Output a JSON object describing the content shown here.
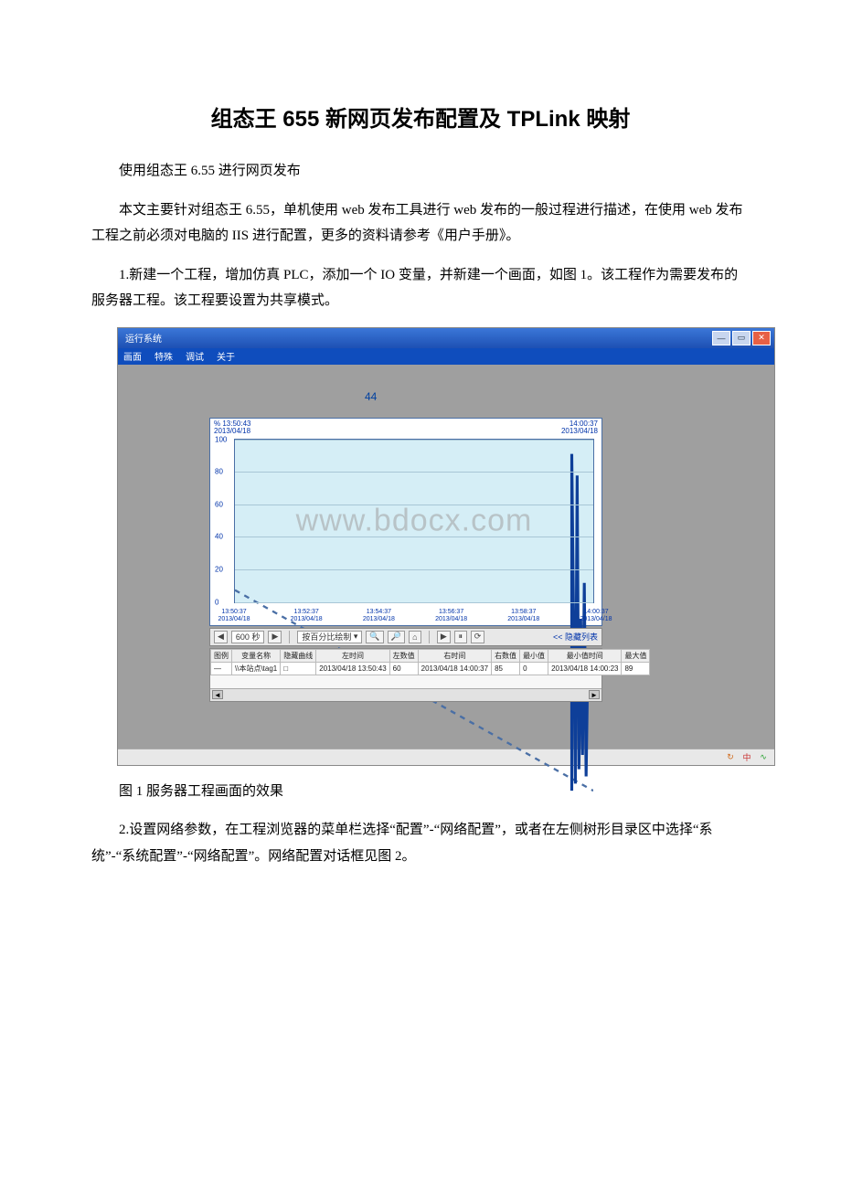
{
  "doc": {
    "title": "组态王 655 新网页发布配置及 TPLink 映射",
    "intro": "使用组态王 6.55 进行网页发布",
    "para1": "本文主要针对组态王 6.55，单机使用 web 发布工具进行 web 发布的一般过程进行描述，在使用 web 发布工程之前必须对电脑的 IIS 进行配置，更多的资料请参考《用户手册》。",
    "para2": "1.新建一个工程，增加仿真 PLC，添加一个 IO 变量，并新建一个画面，如图 1。该工程作为需要发布的服务器工程。该工程要设置为共享模式。",
    "caption1": "图 1 服务器工程画面的效果",
    "para3": "2.设置网络参数，在工程浏览器的菜单栏选择“配置”-“网络配置”，或者在左侧树形目录区中选择“系统”-“系统配置”-“网络配置”。网络配置对话框见图 2。"
  },
  "app": {
    "window_title": "运行系统",
    "menus": [
      "画面",
      "特殊",
      "调试",
      "关于"
    ],
    "big_value": "44",
    "titlebar_color": "#1e50b3",
    "client_bg": "#9f9f9f",
    "watermark": "www.bdocx.com"
  },
  "chart": {
    "type": "line",
    "bg_color": "#d5eef6",
    "grid_color": "#a8c6d6",
    "border_color": "#4a6fa5",
    "line_color_dotted": "#4a6fa5",
    "line_color_spike": "#0e3f99",
    "left_label_top": "% 13:50:43",
    "left_label_bottom": "2013/04/18",
    "right_label_top": "14:00:37",
    "right_label_bottom": "2013/04/18",
    "y_ticks": [
      0,
      20,
      40,
      60,
      80,
      100
    ],
    "ylim": [
      0,
      100
    ],
    "x_ticks": [
      {
        "t": "13:50:37",
        "d": "2013/04/18"
      },
      {
        "t": "13:52:37",
        "d": "2013/04/18"
      },
      {
        "t": "13:54:37",
        "d": "2013/04/18"
      },
      {
        "t": "13:56:37",
        "d": "2013/04/18"
      },
      {
        "t": "13:58:37",
        "d": "2013/04/18"
      },
      {
        "t": "14:00:37",
        "d": "2013/04/18"
      }
    ],
    "dotted_series": [
      [
        0,
        58
      ],
      [
        100,
        2
      ]
    ],
    "spike_series": [
      [
        94,
        2
      ],
      [
        94,
        96
      ],
      [
        95,
        4
      ],
      [
        95.5,
        90
      ],
      [
        96,
        8
      ],
      [
        96.5,
        50
      ],
      [
        97,
        12
      ],
      [
        97.5,
        60
      ],
      [
        98,
        6
      ],
      [
        98.5,
        40
      ]
    ]
  },
  "toolbar": {
    "nav_left": "◀",
    "span_value": "600 秒",
    "nav_right": "▶",
    "mode_label": "按百分比绘制",
    "hide_list": "<< 隐藏列表"
  },
  "table": {
    "columns": [
      "图例",
      "变量名称",
      "隐藏曲线",
      "左时间",
      "左数值",
      "右时间",
      "右数值",
      "最小值",
      "最小值时间",
      "最大值"
    ],
    "rows": [
      [
        "—",
        "\\\\本站点\\tag1",
        "□",
        "2013/04/18 13:50:43",
        "60",
        "2013/04/18 14:00:37",
        "85",
        "0",
        "2013/04/18 14:00:23",
        "89"
      ]
    ]
  },
  "status": {
    "icons": [
      "↻",
      "中",
      "∿"
    ]
  }
}
